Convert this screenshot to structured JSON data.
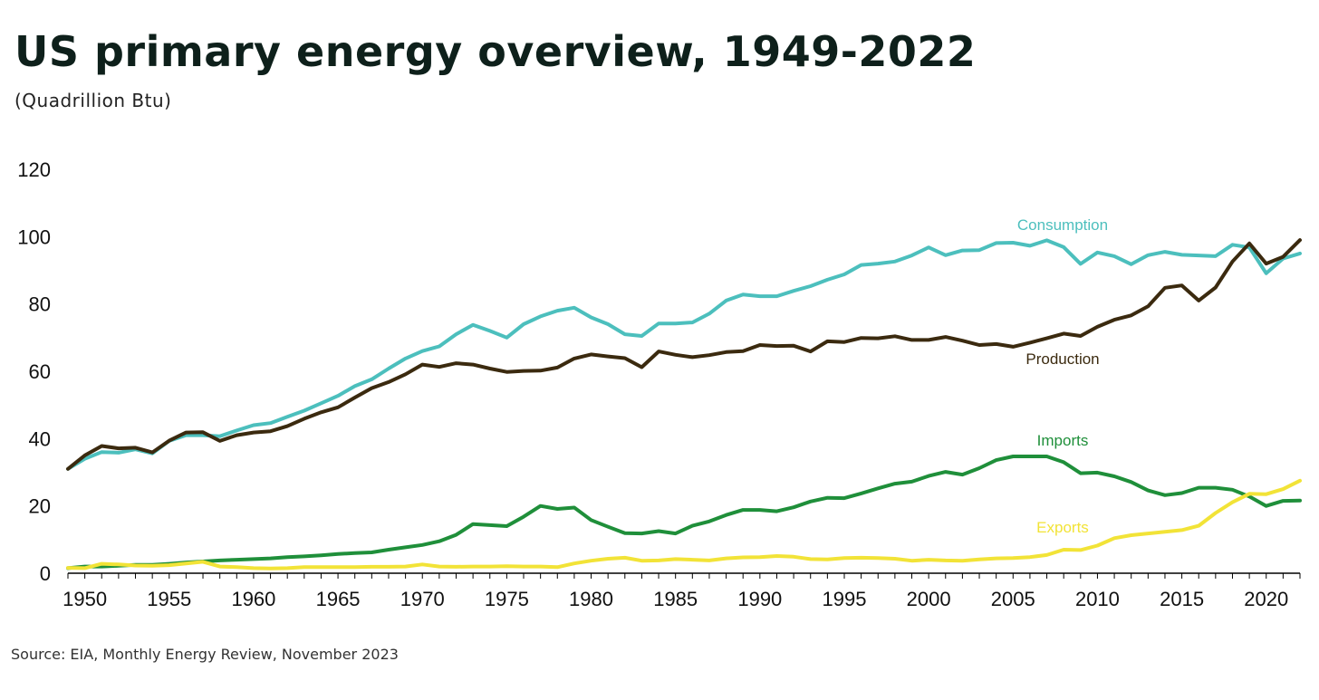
{
  "chart_data": {
    "type": "line",
    "title": "US primary energy overview, 1949-2022",
    "subtitle": "(Quadrillion Btu)",
    "source": "Source: EIA, Monthly Energy Review, November 2023",
    "xlim": [
      1949,
      2022
    ],
    "ylim": [
      0,
      120
    ],
    "x_ticks": [
      1950,
      1955,
      1960,
      1965,
      1970,
      1975,
      1980,
      1985,
      1990,
      1995,
      2000,
      2005,
      2010,
      2015,
      2020
    ],
    "y_ticks": [
      0,
      20,
      40,
      60,
      80,
      100,
      120
    ],
    "grid": false,
    "x": [
      1949,
      1950,
      1951,
      1952,
      1953,
      1954,
      1955,
      1956,
      1957,
      1958,
      1959,
      1960,
      1961,
      1962,
      1963,
      1964,
      1965,
      1966,
      1967,
      1968,
      1969,
      1970,
      1971,
      1972,
      1973,
      1974,
      1975,
      1976,
      1977,
      1978,
      1979,
      1980,
      1981,
      1982,
      1983,
      1984,
      1985,
      1986,
      1987,
      1988,
      1989,
      1990,
      1991,
      1992,
      1993,
      1994,
      1995,
      1996,
      1997,
      1998,
      1999,
      2000,
      2001,
      2002,
      2003,
      2004,
      2005,
      2006,
      2007,
      2008,
      2009,
      2010,
      2011,
      2012,
      2013,
      2014,
      2015,
      2016,
      2017,
      2018,
      2019,
      2020,
      2021,
      2022
    ],
    "series": [
      {
        "name": "Consumption",
        "color": "#4cbfbd",
        "values": [
          31.0,
          34.0,
          36.0,
          35.8,
          36.8,
          35.6,
          39.3,
          41.0,
          41.0,
          40.7,
          42.4,
          44.0,
          44.6,
          46.5,
          48.3,
          50.5,
          52.7,
          55.6,
          57.6,
          60.8,
          63.8,
          66.0,
          67.4,
          71.0,
          73.8,
          72.0,
          70.0,
          74.0,
          76.3,
          78.0,
          78.9,
          76.0,
          74.0,
          71.0,
          70.5,
          74.2,
          74.2,
          74.5,
          77.1,
          81.0,
          82.8,
          82.3,
          82.3,
          83.9,
          85.3,
          87.2,
          88.8,
          91.6,
          92.0,
          92.6,
          94.4,
          96.8,
          94.5,
          95.9,
          96.0,
          98.1,
          98.2,
          97.3,
          98.9,
          96.9,
          91.9,
          95.3,
          94.2,
          91.8,
          94.5,
          95.5,
          94.6,
          94.4,
          94.2,
          97.6,
          96.8,
          89.1,
          93.5,
          95.0
        ]
      },
      {
        "name": "Production",
        "color": "#3b2a0f",
        "values": [
          31.0,
          35.0,
          37.8,
          37.1,
          37.3,
          35.9,
          39.4,
          41.8,
          41.9,
          39.3,
          41.0,
          41.8,
          42.2,
          43.7,
          45.9,
          47.8,
          49.3,
          52.2,
          55.0,
          56.8,
          59.1,
          62.0,
          61.3,
          62.4,
          62.0,
          60.8,
          59.8,
          60.1,
          60.2,
          61.1,
          63.8,
          65.0,
          64.4,
          63.9,
          61.2,
          65.9,
          64.9,
          64.2,
          64.8,
          65.7,
          66.0,
          67.8,
          67.5,
          67.6,
          65.9,
          68.9,
          68.7,
          69.9,
          69.8,
          70.4,
          69.3,
          69.3,
          70.2,
          69.1,
          67.8,
          68.1,
          67.3,
          68.5,
          69.8,
          71.2,
          70.5,
          73.2,
          75.3,
          76.6,
          79.3,
          84.8,
          85.5,
          81.0,
          84.9,
          92.6,
          98.0,
          92.0,
          94.0,
          99.0
        ]
      },
      {
        "name": "Imports",
        "color": "#1f8f3a",
        "values": [
          1.5,
          2.0,
          2.0,
          2.2,
          2.5,
          2.5,
          2.8,
          3.2,
          3.5,
          3.8,
          4.0,
          4.2,
          4.4,
          4.8,
          5.0,
          5.3,
          5.7,
          6.0,
          6.2,
          7.0,
          7.7,
          8.4,
          9.5,
          11.4,
          14.6,
          14.3,
          14.0,
          16.8,
          20.0,
          19.1,
          19.5,
          15.8,
          13.8,
          11.9,
          11.8,
          12.5,
          11.8,
          14.1,
          15.4,
          17.3,
          18.8,
          18.8,
          18.4,
          19.6,
          21.3,
          22.4,
          22.3,
          23.7,
          25.2,
          26.6,
          27.2,
          28.9,
          30.1,
          29.3,
          31.2,
          33.6,
          34.7,
          34.7,
          34.7,
          33.0,
          29.7,
          29.9,
          28.8,
          27.1,
          24.6,
          23.2,
          23.8,
          25.4,
          25.4,
          24.8,
          22.8,
          20.0,
          21.5,
          21.6
        ]
      },
      {
        "name": "Exports",
        "color": "#f2e337",
        "values": [
          1.6,
          1.5,
          2.8,
          2.6,
          2.3,
          2.2,
          2.4,
          2.9,
          3.4,
          2.0,
          1.8,
          1.5,
          1.4,
          1.5,
          1.8,
          1.8,
          1.8,
          1.8,
          1.9,
          1.9,
          2.0,
          2.6,
          2.0,
          1.9,
          2.0,
          2.0,
          2.1,
          2.0,
          2.0,
          1.8,
          2.9,
          3.7,
          4.3,
          4.6,
          3.7,
          3.8,
          4.2,
          4.0,
          3.8,
          4.4,
          4.7,
          4.8,
          5.1,
          4.9,
          4.2,
          4.1,
          4.5,
          4.6,
          4.5,
          4.3,
          3.7,
          4.0,
          3.8,
          3.7,
          4.1,
          4.4,
          4.5,
          4.8,
          5.4,
          7.0,
          6.9,
          8.2,
          10.4,
          11.3,
          11.8,
          12.3,
          12.8,
          14.1,
          17.9,
          21.1,
          23.6,
          23.5,
          25.0,
          27.5
        ]
      }
    ]
  }
}
